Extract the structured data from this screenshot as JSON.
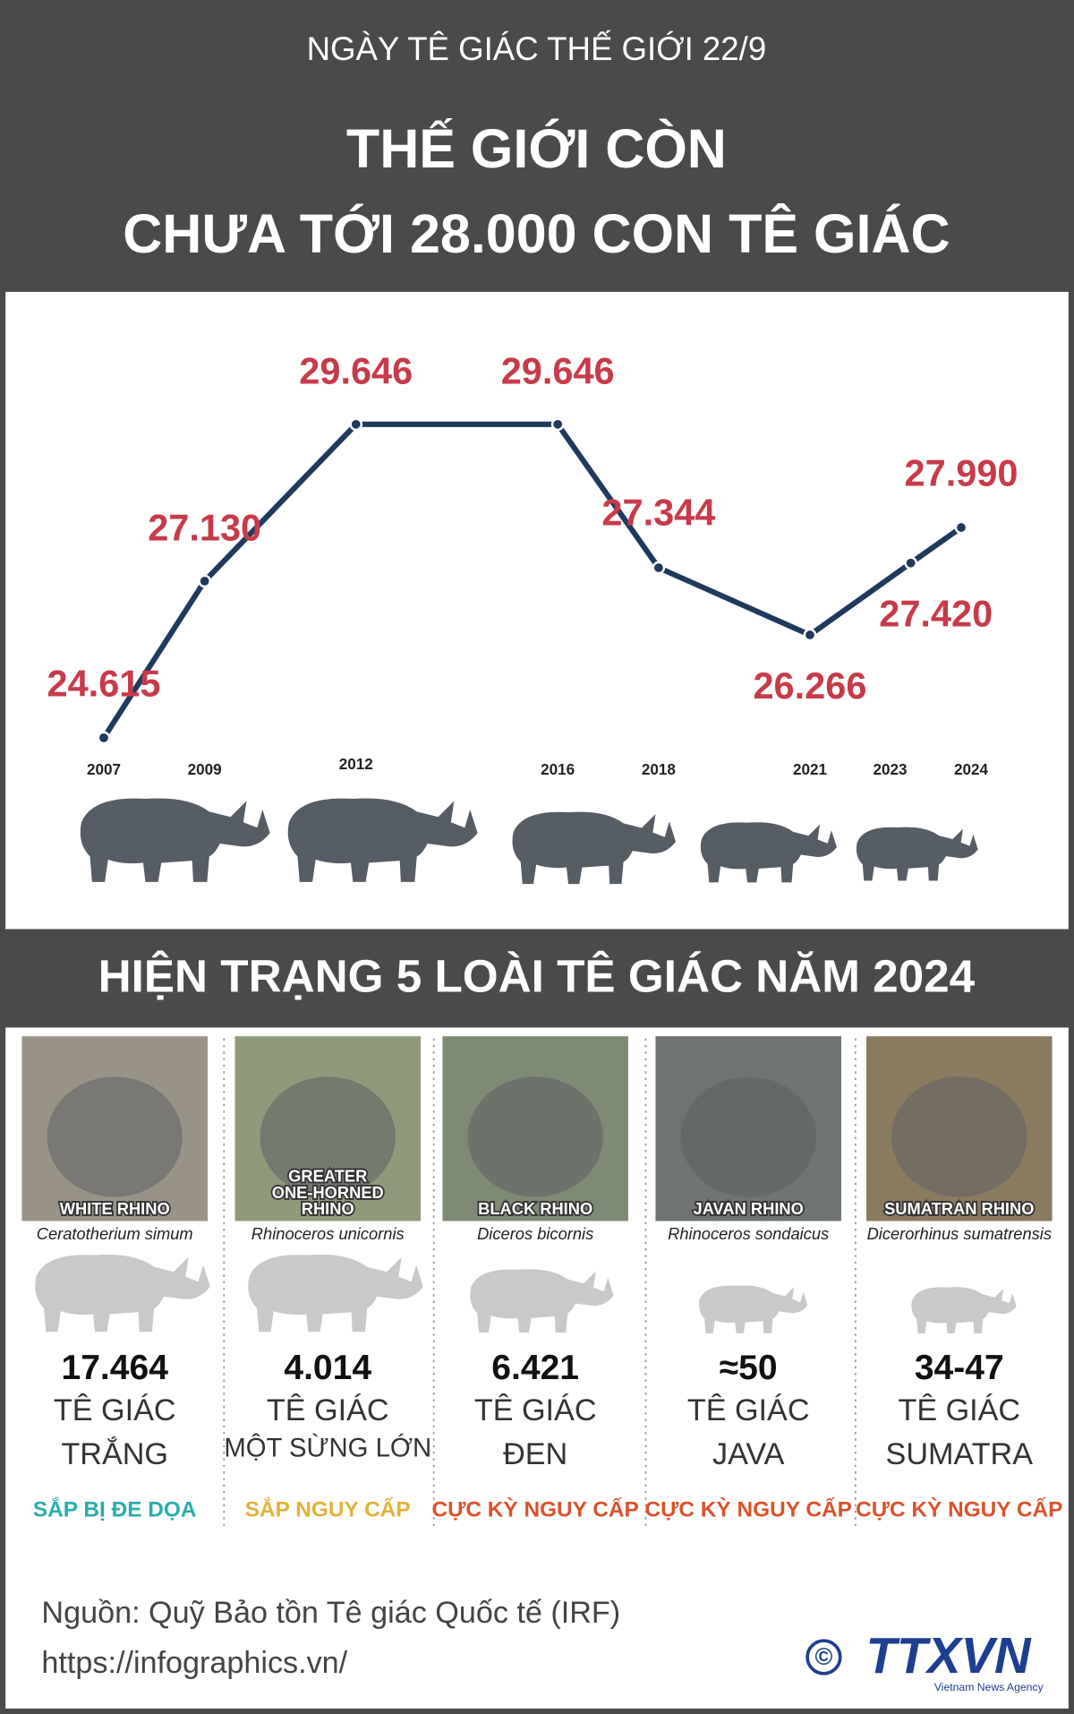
{
  "header": {
    "kicker": "NGÀY TÊ GIÁC THẾ GIỚI 22/9",
    "title_line1": "THẾ GIỚI CÒN",
    "title_line2": "CHƯA TỚI 28.000 CON TÊ GIÁC"
  },
  "chart_data": {
    "type": "line",
    "x": [
      2007,
      2009,
      2012,
      2016,
      2018,
      2021,
      2023,
      2024
    ],
    "values": [
      24615,
      27130,
      29646,
      29646,
      27344,
      26266,
      27420,
      27990
    ],
    "value_labels": [
      "24.615",
      "27.130",
      "29.646",
      "29.646",
      "27.344",
      "26.266",
      "27.420",
      "27.990"
    ],
    "xlim": [
      2006,
      2025
    ],
    "ylim": [
      23000,
      31000
    ],
    "color": "#1f3a5c",
    "label_color": "#c83a4a"
  },
  "section": {
    "title": "HIỆN TRẠNG 5 LOÀI TÊ GIÁC NĂM 2024"
  },
  "species": [
    {
      "photo_label": [
        "WHITE RHINO"
      ],
      "scientific": "Ceratotherium simum",
      "count": "17.464",
      "name": [
        "TÊ GIÁC",
        "TRẮNG"
      ],
      "status": "SẮP BỊ ĐE DỌA",
      "status_color": "#2aacac"
    },
    {
      "photo_label": [
        "GREATER",
        "ONE-HORNED",
        "RHINO"
      ],
      "scientific": "Rhinoceros unicornis",
      "count": "4.014",
      "name": [
        "TÊ GIÁC",
        "MỘT SỪNG LỚN"
      ],
      "status": "SẮP NGUY CẤP",
      "status_color": "#e2b23a"
    },
    {
      "photo_label": [
        "BLACK RHINO"
      ],
      "scientific": "Diceros bicornis",
      "count": "6.421",
      "name": [
        "TÊ GIÁC",
        "ĐEN"
      ],
      "status": "CỰC KỲ NGUY CẤP",
      "status_color": "#d9532b"
    },
    {
      "photo_label": [
        "JAVAN RHINO"
      ],
      "scientific": "Rhinoceros sondaicus",
      "count": "≈50",
      "name": [
        "TÊ GIÁC",
        "JAVA"
      ],
      "status": "CỰC KỲ NGUY CẤP",
      "status_color": "#d9532b"
    },
    {
      "photo_label": [
        "SUMATRAN RHINO"
      ],
      "scientific": "Dicerorhinus sumatrensis",
      "count": "34-47",
      "name": [
        "TÊ GIÁC",
        "SUMATRA"
      ],
      "status": "CỰC KỲ NGUY CẤP",
      "status_color": "#d9532b"
    }
  ],
  "footer": {
    "source": "Nguồn: Quỹ Bảo tồn Tê giác Quốc tế (IRF)",
    "url": "https://infographics.vn/",
    "copyright": "©",
    "logo": "TTXVN",
    "logo_sub": "Vietnam News Agency"
  }
}
